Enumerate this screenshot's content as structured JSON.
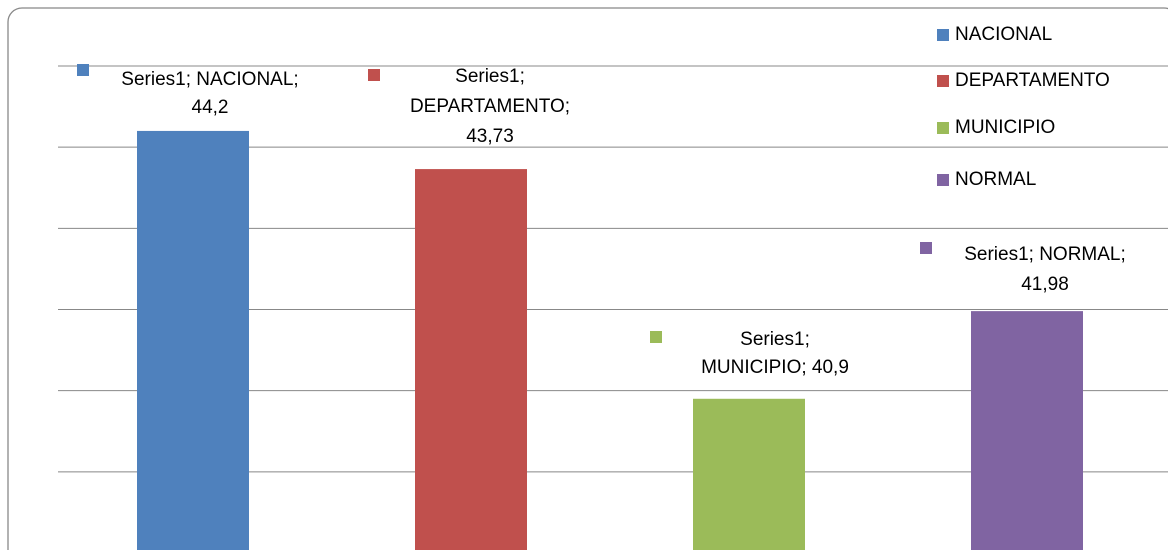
{
  "chart_data": {
    "type": "bar",
    "categories": [
      "NACIONAL",
      "DEPARTAMENTO",
      "MUNICIPIO",
      "NORMAL"
    ],
    "series": [
      {
        "name": "Series1",
        "colors": [
          "#4f81bd",
          "#c0504d",
          "#9bbb59",
          "#8064a2"
        ],
        "values": [
          44.2,
          43.73,
          40.9,
          41.98
        ],
        "value_labels": [
          "Series1; NACIONAL; 44,2",
          "Series1; DEPARTAMENTO; 43,73",
          "Series1; MUNICIPIO; 40,9",
          "Series1; NORMAL; 41,98"
        ]
      }
    ],
    "ylim": [
      39,
      45
    ],
    "yticks": [
      40,
      41,
      42,
      43,
      44,
      45
    ],
    "grid": true,
    "legend": "top-right"
  }
}
